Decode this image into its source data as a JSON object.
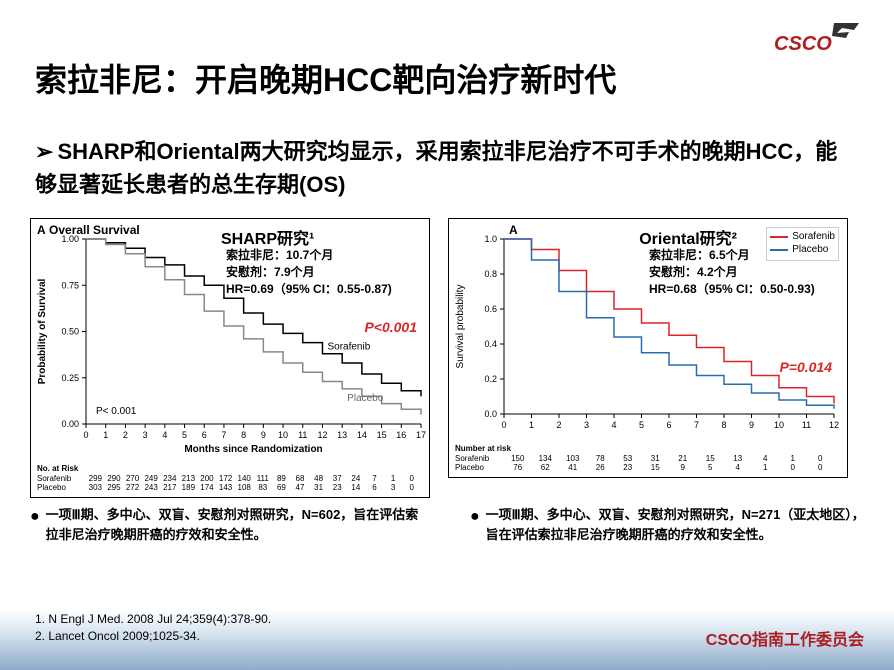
{
  "logo_text": "CSCO",
  "title": "索拉非尼：开启晚期HCC靶向治疗新时代",
  "subtitle": "SHARP和Oriental两大研究均显示，采用索拉非尼治疗不可手术的晚期HCC，能够显著延长患者的总生存期(OS)",
  "chart1": {
    "panel_label": "A",
    "panel_sub": "Overall Survival",
    "title": "SHARP研究¹",
    "stats_l1": "索拉非尼：10.7个月",
    "stats_l2": "安慰剂：7.9个月",
    "stats_l3": "HR=0.69（95% CI：0.55-0.87)",
    "pvalue": "P<0.001",
    "inner_p": "P< 0.001",
    "xlabel": "Months since Randomization",
    "ylabel": "Probability of Survival",
    "xlim": [
      0,
      17
    ],
    "ylim": [
      0,
      1.0
    ],
    "xticks": [
      0,
      1,
      2,
      3,
      4,
      5,
      6,
      7,
      8,
      9,
      10,
      11,
      12,
      13,
      14,
      15,
      16,
      17
    ],
    "yticks": [
      0.0,
      0.25,
      0.5,
      0.75,
      1.0
    ],
    "sorafenib": {
      "label": "Sorafenib",
      "color": "#000000",
      "y": [
        1.0,
        0.98,
        0.95,
        0.9,
        0.86,
        0.8,
        0.75,
        0.68,
        0.6,
        0.54,
        0.49,
        0.44,
        0.38,
        0.33,
        0.27,
        0.22,
        0.18,
        0.15
      ]
    },
    "placebo": {
      "label": "Placebo",
      "color": "#888888",
      "y": [
        1.0,
        0.97,
        0.92,
        0.85,
        0.78,
        0.7,
        0.61,
        0.53,
        0.46,
        0.39,
        0.33,
        0.28,
        0.23,
        0.19,
        0.15,
        0.11,
        0.08,
        0.05
      ]
    },
    "risk_header": "No. at Risk",
    "risk_rows": [
      {
        "label": "Sorafenib",
        "vals": [
          "299",
          "290",
          "270",
          "249",
          "234",
          "213",
          "200",
          "172",
          "140",
          "111",
          "89",
          "68",
          "48",
          "37",
          "24",
          "7",
          "1",
          "0"
        ]
      },
      {
        "label": "Placebo",
        "vals": [
          "303",
          "295",
          "272",
          "243",
          "217",
          "189",
          "174",
          "143",
          "108",
          "83",
          "69",
          "47",
          "31",
          "23",
          "14",
          "6",
          "3",
          "0"
        ]
      }
    ]
  },
  "chart2": {
    "panel_label": "A",
    "title": "Oriental研究²",
    "stats_l1": "索拉非尼：6.5个月",
    "stats_l2": "安慰剂：4.2个月",
    "stats_l3": "HR=0.68（95% CI：0.50-0.93)",
    "pvalue": "P=0.014",
    "xlabel": "",
    "ylabel": "Survival probability",
    "xlim": [
      0,
      12
    ],
    "ylim": [
      0,
      1.0
    ],
    "sorafenib": {
      "label": "Sorafenib",
      "color": "#d8272b",
      "x": [
        0,
        1,
        2,
        3,
        4,
        5,
        6,
        7,
        8,
        9,
        10,
        11,
        12
      ],
      "y": [
        1.0,
        0.94,
        0.82,
        0.7,
        0.6,
        0.52,
        0.45,
        0.38,
        0.3,
        0.22,
        0.15,
        0.1,
        0.06
      ]
    },
    "placebo": {
      "label": "Placebo",
      "color": "#2a6bb0",
      "x": [
        0,
        1,
        2,
        3,
        4,
        5,
        6,
        7,
        8,
        9,
        10,
        11,
        12
      ],
      "y": [
        1.0,
        0.88,
        0.7,
        0.55,
        0.44,
        0.35,
        0.28,
        0.22,
        0.17,
        0.12,
        0.08,
        0.05,
        0.03
      ]
    },
    "risk_header": "Number at risk",
    "risk_rows": [
      {
        "label": "Sorafenib",
        "vals": [
          "150",
          "134",
          "103",
          "78",
          "53",
          "31",
          "21",
          "15",
          "13",
          "4",
          "1",
          "0"
        ]
      },
      {
        "label": "Placebo",
        "vals": [
          "76",
          "62",
          "41",
          "26",
          "23",
          "15",
          "9",
          "5",
          "4",
          "1",
          "0",
          "0"
        ]
      }
    ]
  },
  "bullet1": "一项Ⅲ期、多中心、双盲、安慰剂对照研究，N=602，旨在评估索拉非尼治疗晚期肝癌的疗效和安全性。",
  "bullet2": "一项Ⅲ期、多中心、双盲、安慰剂对照研究，N=271（亚太地区），旨在评估索拉非尼治疗晚期肝癌的疗效和安全性。",
  "ref1": "1. N Engl J Med. 2008 Jul 24;359(4):378-90.",
  "ref2": "2. Lancet Oncol 2009;1025-34.",
  "footer": "CSCO指南工作委员会"
}
